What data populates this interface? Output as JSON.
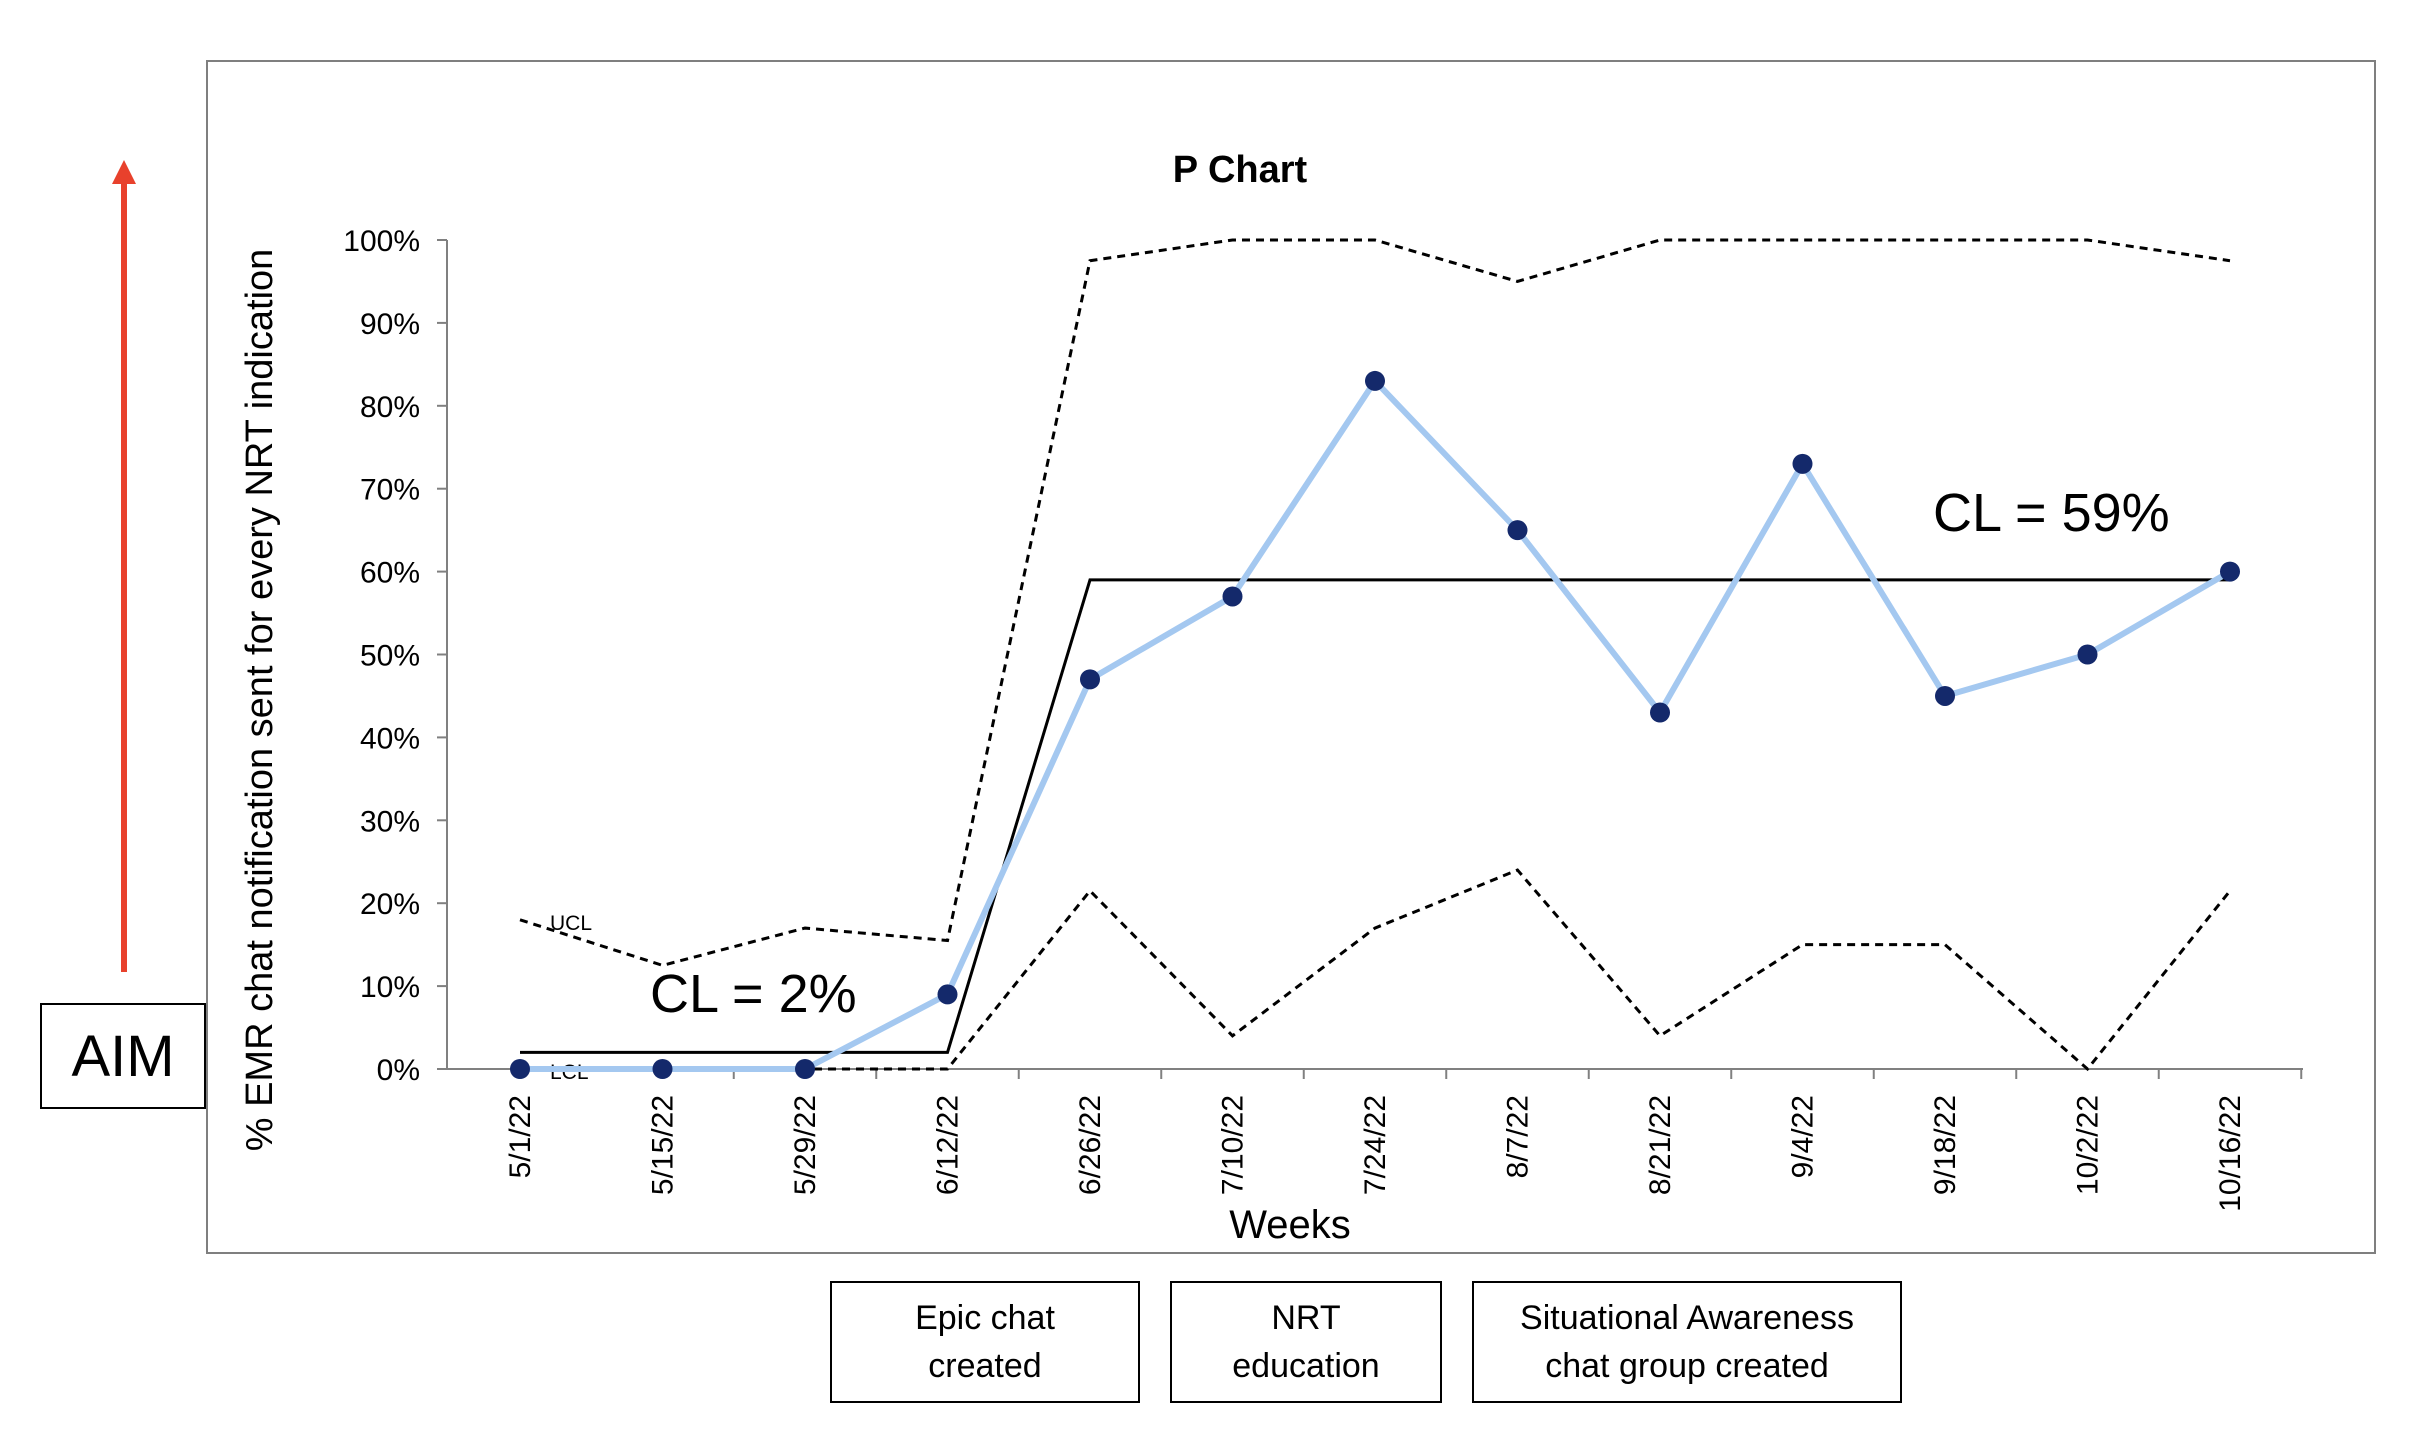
{
  "aim": {
    "label": "AIM"
  },
  "events": [
    {
      "label": "Epic chat\ncreated"
    },
    {
      "label": "NRT\neducation"
    },
    {
      "label": "Situational Awareness\nchat group created"
    }
  ],
  "colors": {
    "aim_arrow": "#e8412c",
    "series_line": "#a4c8f0",
    "marker": "#14296b",
    "cl_line": "#000000",
    "limit_line": "#000000"
  },
  "chart_data": {
    "type": "line",
    "title": "P Chart",
    "xlabel": "Weeks",
    "ylabel": "%  EMR chat notification sent for every NRT indication",
    "ylim": [
      0,
      1
    ],
    "yticks": [
      "0%",
      "10%",
      "20%",
      "30%",
      "40%",
      "50%",
      "60%",
      "70%",
      "80%",
      "90%",
      "100%"
    ],
    "categories": [
      "5/1/22",
      "5/15/22",
      "5/29/22",
      "6/12/22",
      "6/26/22",
      "7/10/22",
      "7/24/22",
      "8/7/22",
      "8/21/22",
      "9/4/22",
      "9/18/22",
      "10/2/22",
      "10/16/22"
    ],
    "series": [
      {
        "role": "proportion",
        "values": [
          0,
          0,
          0,
          0.09,
          0.47,
          0.57,
          0.83,
          0.65,
          0.43,
          0.73,
          0.45,
          0.5,
          0.6
        ]
      },
      {
        "role": "center",
        "values": [
          0.02,
          0.02,
          0.02,
          0.02,
          0.59,
          0.59,
          0.59,
          0.59,
          0.59,
          0.59,
          0.59,
          0.59,
          0.59
        ]
      },
      {
        "name": "UCL",
        "values": [
          0.18,
          0.125,
          0.17,
          0.155,
          0.975,
          1.0,
          1.0,
          0.95,
          1.0,
          1.0,
          1.0,
          1.0,
          0.975
        ]
      },
      {
        "name": "LCL",
        "values": [
          0,
          0,
          0,
          0,
          0.215,
          0.04,
          0.17,
          0.24,
          0.04,
          0.15,
          0.15,
          0,
          0.215
        ]
      }
    ],
    "annotations": [
      "CL = 2%",
      "CL = 59%"
    ],
    "grid": false
  }
}
